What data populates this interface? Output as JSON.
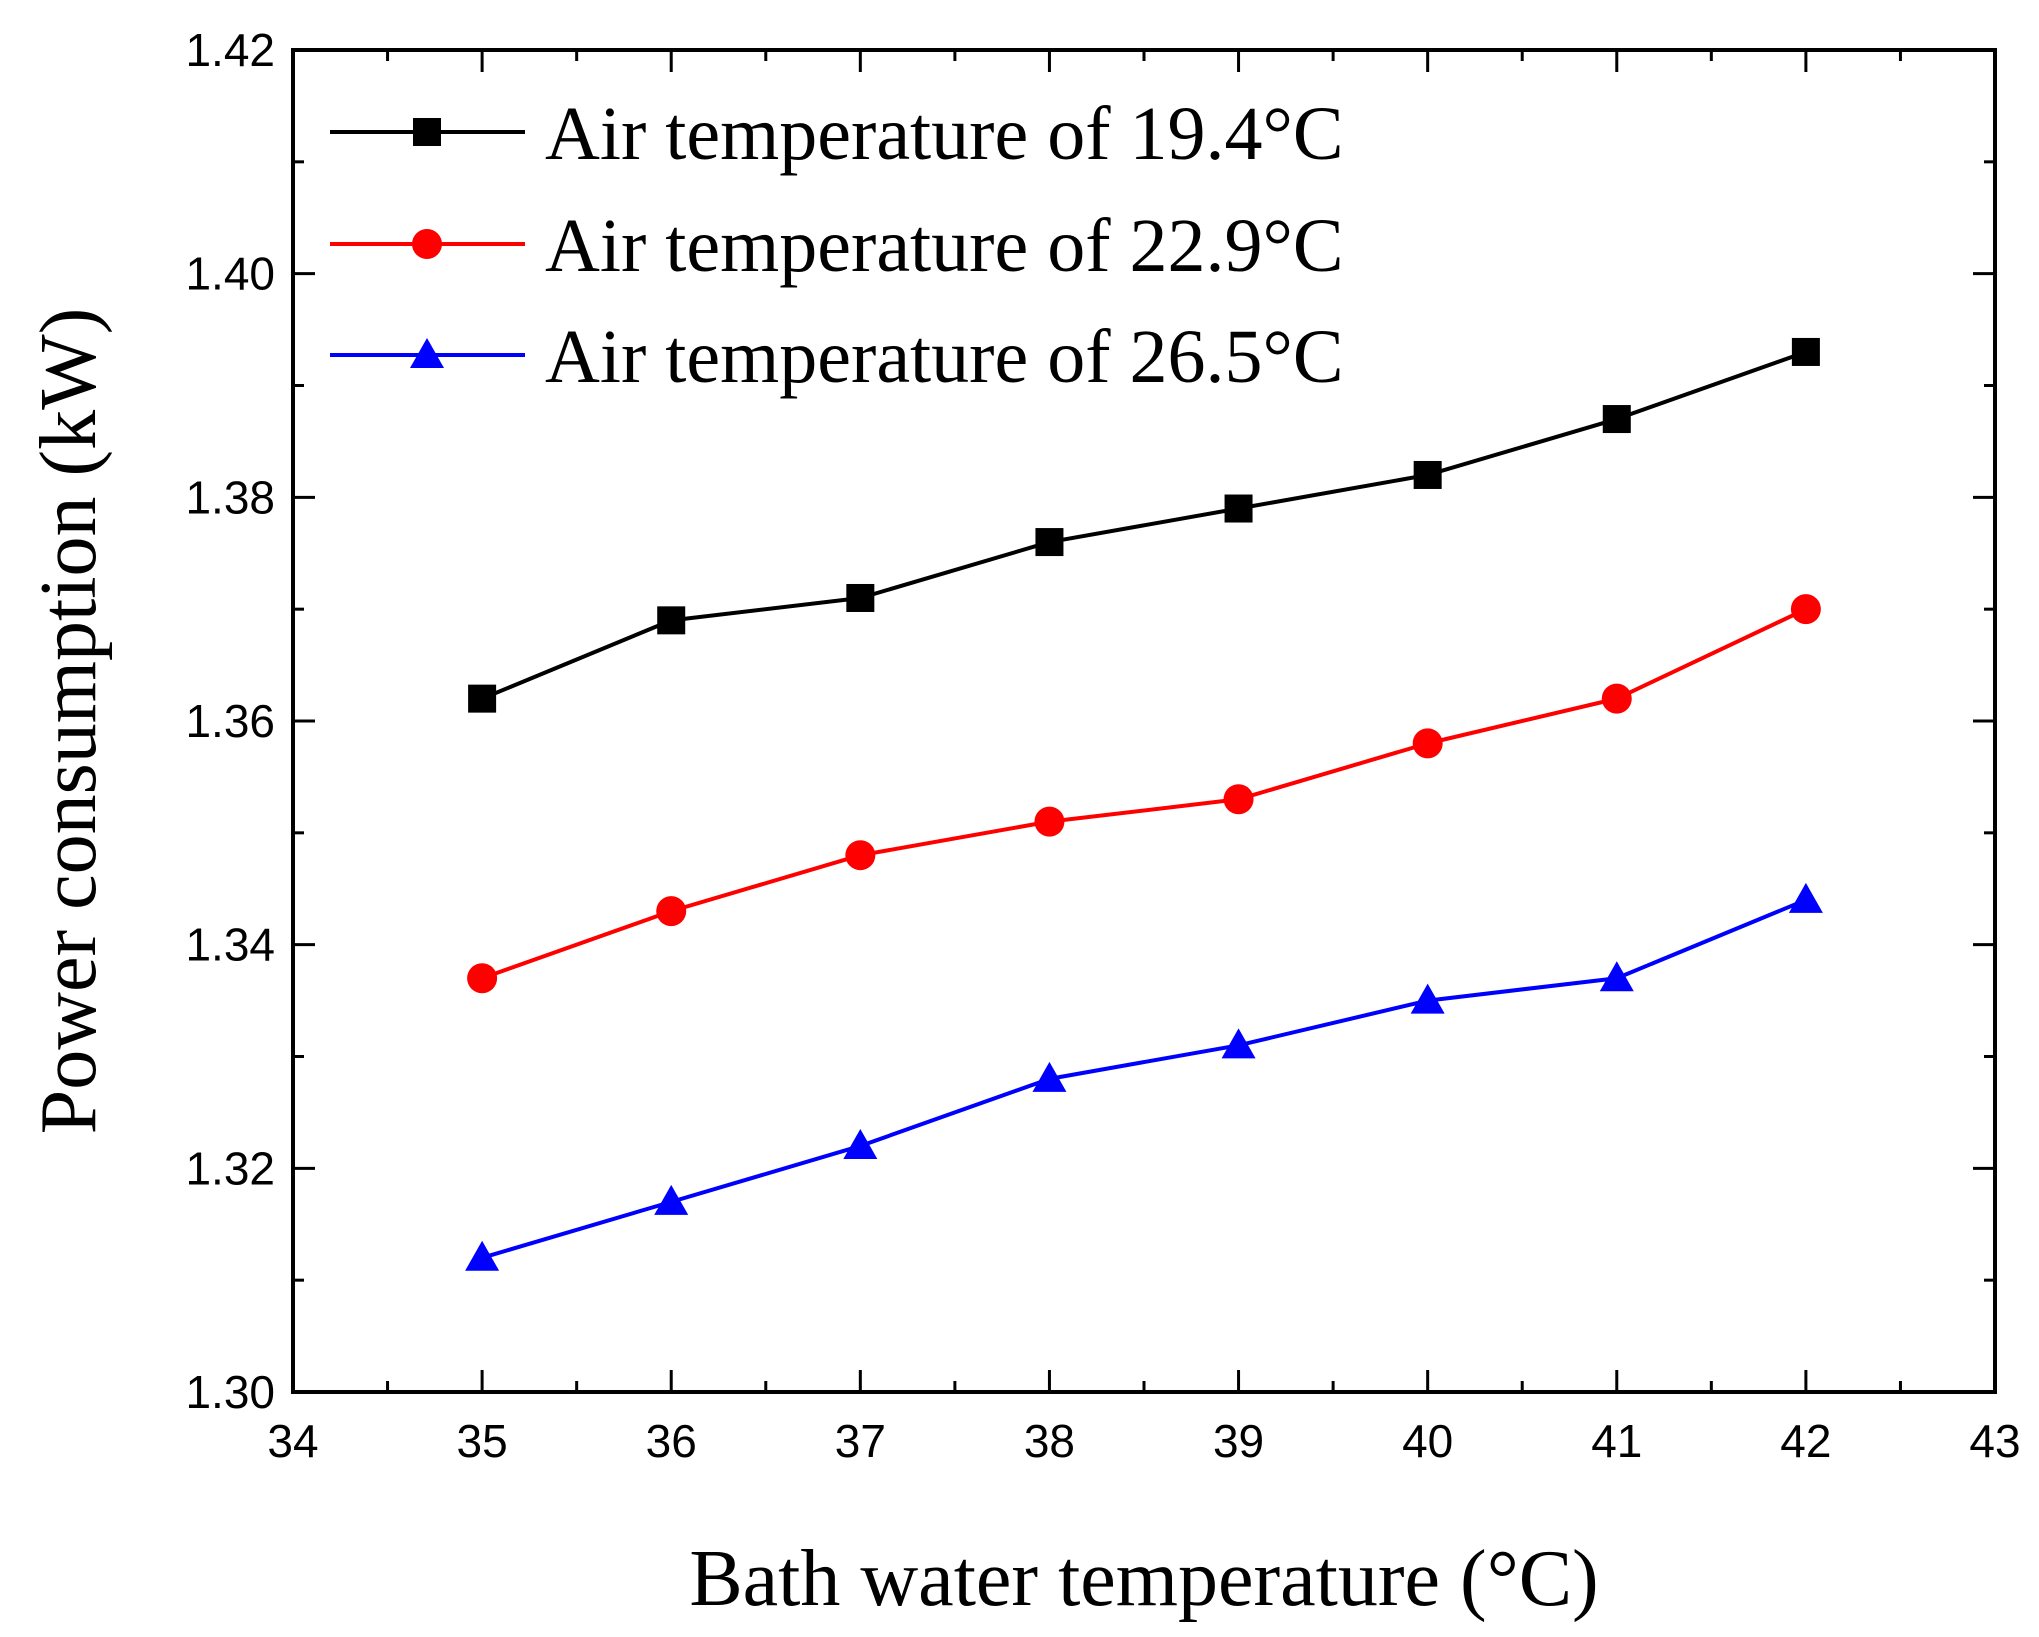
{
  "chart_data": {
    "type": "line",
    "title": "",
    "xlabel": "Bath water temperature (°C)",
    "ylabel": "Power consumption (kW)",
    "xlim": [
      34,
      43
    ],
    "ylim": [
      1.3,
      1.42
    ],
    "x_ticks": [
      34,
      35,
      36,
      37,
      38,
      39,
      40,
      41,
      42,
      43
    ],
    "x_tick_labels": [
      "34",
      "35",
      "36",
      "37",
      "38",
      "39",
      "40",
      "41",
      "42",
      "43"
    ],
    "y_ticks": [
      1.3,
      1.32,
      1.34,
      1.36,
      1.38,
      1.4,
      1.42
    ],
    "y_tick_labels": [
      "1.30",
      "1.32",
      "1.34",
      "1.36",
      "1.38",
      "1.40",
      "1.42"
    ],
    "grid": false,
    "legend_position": "top-left",
    "x": [
      35,
      36,
      37,
      38,
      39,
      40,
      41,
      42
    ],
    "series": [
      {
        "name": "Air temperature of 19.4°C",
        "color": "#000000",
        "marker": "square",
        "values": [
          1.362,
          1.369,
          1.371,
          1.376,
          1.379,
          1.382,
          1.387,
          1.393
        ]
      },
      {
        "name": "Air temperature of 22.9°C",
        "color": "#ff0000",
        "marker": "circle",
        "values": [
          1.337,
          1.343,
          1.348,
          1.351,
          1.353,
          1.358,
          1.362,
          1.37
        ]
      },
      {
        "name": "Air temperature of 26.5°C",
        "color": "#0000ff",
        "marker": "triangle",
        "values": [
          1.312,
          1.317,
          1.322,
          1.328,
          1.331,
          1.335,
          1.337,
          1.344
        ]
      }
    ]
  }
}
